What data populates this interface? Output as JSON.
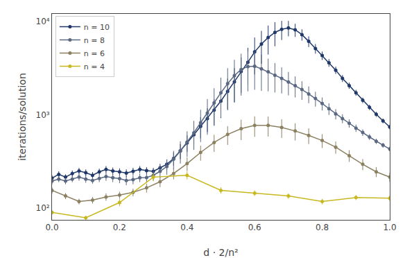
{
  "chart_data": {
    "type": "line",
    "xlabel": "d · 2/n²",
    "ylabel": "iterations/solution",
    "xlim": [
      0.0,
      1.0
    ],
    "ylim": [
      75,
      12000
    ],
    "xticks": [
      {
        "value": 0.0,
        "label": "0.0"
      },
      0.2,
      0.4,
      0.6,
      0.8,
      {
        "value": 1.0,
        "label": "1.0"
      }
    ],
    "yticks": [
      {
        "value": 100,
        "label": "10²"
      },
      {
        "value": 1000,
        "label": "10³"
      },
      {
        "value": 10000,
        "label": "10⁴"
      }
    ],
    "log": "y",
    "grid": false,
    "legend": "upper left",
    "marker": "circle",
    "line_style": "solid",
    "series": [
      {
        "name": "n = 10",
        "color": "#1f3869",
        "x": [
          0.0,
          0.02,
          0.04,
          0.06,
          0.08,
          0.1,
          0.12,
          0.14,
          0.16,
          0.18,
          0.2,
          0.22,
          0.24,
          0.26,
          0.28,
          0.3,
          0.32,
          0.34,
          0.36,
          0.38,
          0.4,
          0.42,
          0.44,
          0.46,
          0.48,
          0.5,
          0.52,
          0.54,
          0.56,
          0.58,
          0.6,
          0.62,
          0.64,
          0.66,
          0.68,
          0.7,
          0.72,
          0.74,
          0.76,
          0.78,
          0.8,
          0.82,
          0.84,
          0.86,
          0.88,
          0.9,
          0.92,
          0.94,
          0.96,
          0.98,
          1.0
        ],
        "values": [
          210,
          230,
          215,
          235,
          250,
          240,
          225,
          245,
          260,
          250,
          245,
          238,
          248,
          260,
          252,
          248,
          270,
          295,
          340,
          410,
          500,
          610,
          750,
          910,
          1120,
          1400,
          1780,
          2250,
          2900,
          3650,
          4700,
          5700,
          6700,
          7600,
          8200,
          8500,
          8100,
          7200,
          6100,
          5100,
          4300,
          3600,
          3000,
          2450,
          2050,
          1720,
          1430,
          1200,
          1010,
          860,
          740
        ],
        "yerr": [
          15,
          18,
          15,
          18,
          20,
          20,
          18,
          20,
          22,
          22,
          22,
          22,
          22,
          22,
          22,
          22,
          28,
          38,
          55,
          75,
          100,
          140,
          190,
          260,
          350,
          480,
          660,
          900,
          1200,
          1550,
          2000,
          2200,
          2300,
          2200,
          1900,
          1600,
          1300,
          1000,
          800,
          600,
          450,
          340,
          270,
          210,
          160,
          125,
          98,
          78,
          62,
          50,
          42
        ]
      },
      {
        "name": "n = 8",
        "color": "#5a6882",
        "x": [
          0.0,
          0.02,
          0.04,
          0.06,
          0.08,
          0.1,
          0.12,
          0.14,
          0.16,
          0.18,
          0.2,
          0.22,
          0.24,
          0.26,
          0.28,
          0.3,
          0.32,
          0.34,
          0.36,
          0.38,
          0.4,
          0.42,
          0.44,
          0.46,
          0.48,
          0.5,
          0.52,
          0.54,
          0.56,
          0.58,
          0.6,
          0.62,
          0.64,
          0.66,
          0.68,
          0.7,
          0.72,
          0.74,
          0.76,
          0.78,
          0.8,
          0.82,
          0.84,
          0.86,
          0.88,
          0.9,
          0.92,
          0.94,
          0.96,
          0.98,
          1.0
        ],
        "values": [
          195,
          205,
          195,
          205,
          215,
          205,
          198,
          208,
          218,
          212,
          207,
          198,
          202,
          212,
          213,
          225,
          248,
          280,
          335,
          410,
          510,
          640,
          820,
          1040,
          1340,
          1720,
          2150,
          2620,
          3050,
          3280,
          3300,
          3100,
          2880,
          2650,
          2450,
          2240,
          2050,
          1860,
          1670,
          1490,
          1320,
          1160,
          1020,
          910,
          810,
          720,
          645,
          578,
          520,
          472,
          430
        ],
        "yerr": [
          15,
          15,
          15,
          15,
          18,
          18,
          15,
          18,
          22,
          22,
          22,
          22,
          22,
          22,
          22,
          28,
          38,
          52,
          75,
          110,
          155,
          220,
          310,
          430,
          580,
          780,
          1000,
          1250,
          1450,
          1500,
          1450,
          1300,
          1100,
          920,
          760,
          630,
          520,
          420,
          340,
          270,
          210,
          165,
          130,
          100,
          82,
          65,
          52,
          42,
          34,
          28,
          24
        ]
      },
      {
        "name": "n = 6",
        "color": "#8b8060",
        "x": [
          0.0,
          0.04,
          0.08,
          0.12,
          0.16,
          0.2,
          0.24,
          0.28,
          0.32,
          0.36,
          0.4,
          0.44,
          0.48,
          0.52,
          0.56,
          0.6,
          0.64,
          0.68,
          0.72,
          0.76,
          0.8,
          0.84,
          0.88,
          0.92,
          0.96,
          1.0
        ],
        "values": [
          155,
          135,
          118,
          122,
          132,
          138,
          148,
          165,
          192,
          235,
          300,
          395,
          505,
          615,
          710,
          770,
          770,
          730,
          670,
          600,
          530,
          450,
          365,
          295,
          245,
          215
        ],
        "yerr": [
          12,
          10,
          8,
          10,
          12,
          12,
          14,
          18,
          24,
          32,
          50,
          72,
          105,
          140,
          175,
          190,
          185,
          165,
          140,
          115,
          90,
          68,
          52,
          40,
          30,
          24
        ]
      },
      {
        "name": "n = 4",
        "color": "#c8b820",
        "x": [
          0.0,
          0.1,
          0.2,
          0.3,
          0.4,
          0.5,
          0.6,
          0.7,
          0.8,
          0.9,
          1.0
        ],
        "values": [
          90,
          79,
          115,
          215,
          225,
          155,
          145,
          135,
          118,
          130,
          128
        ],
        "yerr": [
          5,
          4,
          10,
          20,
          22,
          12,
          10,
          9,
          8,
          8,
          8
        ]
      }
    ]
  }
}
